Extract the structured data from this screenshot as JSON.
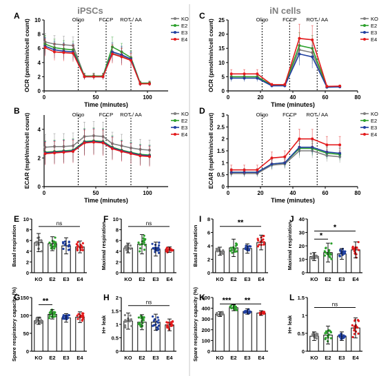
{
  "figure": {
    "left_header": "iPSCs",
    "right_header": "iN cells",
    "colors": {
      "KO": "#7f7f7f",
      "E2": "#2ca02c",
      "E3": "#1f3fa0",
      "E4": "#e31a1c",
      "divider": "#c8c8c8"
    }
  },
  "chart_data": [
    {
      "panel": "A",
      "type": "line",
      "xlabel": "Time (minutes)",
      "ylabel": "OCR (pmol/min/cell count)",
      "xlim": [
        0,
        120
      ],
      "ylim": [
        0,
        10
      ],
      "xticks": [
        0,
        50,
        100
      ],
      "yticks": [
        0,
        2,
        4,
        6,
        8,
        10
      ],
      "markers": [
        {
          "label": "Oligo",
          "x": 33
        },
        {
          "label": "FCCP",
          "x": 60
        },
        {
          "label": "ROT / AA",
          "x": 84
        }
      ],
      "x": [
        1,
        10,
        19,
        28,
        39,
        48,
        57,
        66,
        75,
        84,
        93,
        102
      ],
      "series": [
        {
          "name": "KO",
          "values": [
            6.9,
            6.6,
            6.5,
            6.4,
            2.1,
            2.1,
            2.1,
            5.3,
            4.9,
            4.4,
            1.0,
            1.0
          ],
          "err": [
            1.2,
            1.2,
            1.2,
            1.2,
            0.4,
            0.4,
            0.4,
            1.3,
            1.2,
            1.0,
            0.3,
            0.3
          ]
        },
        {
          "name": "E2",
          "values": [
            6.6,
            6.1,
            5.9,
            5.8,
            2.1,
            2.1,
            2.1,
            6.2,
            5.5,
            4.7,
            1.1,
            1.1
          ],
          "err": [
            1.2,
            1.2,
            1.2,
            1.2,
            0.4,
            0.4,
            0.4,
            1.4,
            1.2,
            1.0,
            0.3,
            0.3
          ]
        },
        {
          "name": "E3",
          "values": [
            6.3,
            5.8,
            5.6,
            5.5,
            2.0,
            2.0,
            2.0,
            5.5,
            5.1,
            4.5,
            1.0,
            1.0
          ],
          "err": [
            1.2,
            1.2,
            1.2,
            1.2,
            0.4,
            0.4,
            0.4,
            1.3,
            1.2,
            1.0,
            0.3,
            0.3
          ]
        },
        {
          "name": "E4",
          "values": [
            6.1,
            5.5,
            5.4,
            5.3,
            2.0,
            2.0,
            2.0,
            5.2,
            4.8,
            4.3,
            1.0,
            1.0
          ],
          "err": [
            1.2,
            1.2,
            1.2,
            1.2,
            0.4,
            0.4,
            0.4,
            1.3,
            1.2,
            1.0,
            0.3,
            0.3
          ]
        }
      ]
    },
    {
      "panel": "B",
      "type": "line",
      "xlabel": "Time (minutes)",
      "ylabel": "ECAR (mpH/min/cell count)",
      "xlim": [
        0,
        120
      ],
      "ylim": [
        0,
        5
      ],
      "xticks": [
        0,
        50,
        100
      ],
      "yticks": [
        0,
        2,
        4
      ],
      "markers": [
        {
          "label": "Oligo",
          "x": 33
        },
        {
          "label": "FCCP",
          "x": 60
        },
        {
          "label": "ROT / AA",
          "x": 84
        }
      ],
      "x": [
        1,
        10,
        19,
        28,
        39,
        48,
        57,
        66,
        75,
        84,
        93,
        102
      ],
      "series": [
        {
          "name": "KO",
          "values": [
            2.75,
            2.8,
            2.8,
            2.85,
            3.5,
            3.55,
            3.5,
            3.0,
            2.85,
            2.7,
            2.6,
            2.55
          ],
          "err": [
            0.9,
            0.9,
            0.9,
            0.9,
            1.0,
            1.0,
            1.0,
            0.8,
            0.8,
            0.8,
            0.7,
            0.7
          ]
        },
        {
          "name": "E2",
          "values": [
            2.4,
            2.45,
            2.5,
            2.55,
            3.15,
            3.2,
            3.15,
            2.75,
            2.55,
            2.4,
            2.25,
            2.2
          ],
          "err": [
            0.8,
            0.8,
            0.8,
            0.8,
            0.9,
            0.9,
            0.9,
            0.8,
            0.7,
            0.7,
            0.7,
            0.7
          ]
        },
        {
          "name": "E3",
          "values": [
            2.35,
            2.4,
            2.45,
            2.5,
            3.1,
            3.15,
            3.1,
            2.7,
            2.5,
            2.35,
            2.2,
            2.15
          ],
          "err": [
            0.8,
            0.8,
            0.8,
            0.8,
            0.9,
            0.9,
            0.9,
            0.8,
            0.7,
            0.7,
            0.7,
            0.7
          ]
        },
        {
          "name": "E4",
          "values": [
            2.3,
            2.35,
            2.4,
            2.45,
            3.05,
            3.1,
            3.05,
            2.65,
            2.45,
            2.3,
            2.15,
            2.1
          ],
          "err": [
            0.8,
            0.8,
            0.8,
            0.8,
            0.9,
            0.9,
            0.9,
            0.8,
            0.7,
            0.7,
            0.7,
            0.7
          ]
        }
      ]
    },
    {
      "panel": "C",
      "type": "line",
      "xlabel": "Time (minutes)",
      "ylabel": "OCR (pmol/min/cell count)",
      "xlim": [
        0,
        80
      ],
      "ylim": [
        0,
        25
      ],
      "xticks": [
        0,
        20,
        40,
        60,
        80
      ],
      "yticks": [
        0,
        5,
        10,
        15,
        20,
        25
      ],
      "markers": [
        {
          "label": "Oligo",
          "x": 21
        },
        {
          "label": "FCCP",
          "x": 38
        },
        {
          "label": "ROT / AA",
          "x": 55
        }
      ],
      "x": [
        2,
        10,
        18,
        27,
        35,
        44,
        52,
        61,
        69
      ],
      "series": [
        {
          "name": "KO",
          "values": [
            5.0,
            5.0,
            5.0,
            2.0,
            2.0,
            14.5,
            13.5,
            1.3,
            1.5
          ],
          "err": [
            1.2,
            1.2,
            1.2,
            0.5,
            0.5,
            4.0,
            4.0,
            0.4,
            0.4
          ]
        },
        {
          "name": "E2",
          "values": [
            5.0,
            5.0,
            5.0,
            2.0,
            2.0,
            16.0,
            15.0,
            1.5,
            1.6
          ],
          "err": [
            1.2,
            1.2,
            1.2,
            0.5,
            0.5,
            4.5,
            4.5,
            0.4,
            0.4
          ]
        },
        {
          "name": "E3",
          "values": [
            4.5,
            4.5,
            4.5,
            1.8,
            1.8,
            13.0,
            12.0,
            1.3,
            1.4
          ],
          "err": [
            1.2,
            1.2,
            1.2,
            0.5,
            0.5,
            4.0,
            4.0,
            0.4,
            0.4
          ]
        },
        {
          "name": "E4",
          "values": [
            6.0,
            6.0,
            6.0,
            2.2,
            2.2,
            18.5,
            18.0,
            1.6,
            1.7
          ],
          "err": [
            1.5,
            1.5,
            1.5,
            0.5,
            0.5,
            5.0,
            5.0,
            0.4,
            0.4
          ]
        }
      ]
    },
    {
      "panel": "D",
      "type": "line",
      "xlabel": "Time (minutes)",
      "ylabel": "ECAR (mpH/min/cell count)",
      "xlim": [
        0,
        80
      ],
      "ylim": [
        0,
        3
      ],
      "xticks": [
        0,
        20,
        40,
        60,
        80
      ],
      "yticks": [
        0.0,
        0.5,
        1.0,
        1.5,
        2.0,
        2.5,
        3.0
      ],
      "markers": [
        {
          "label": "Oligo",
          "x": 21
        },
        {
          "label": "FCCP",
          "x": 38
        },
        {
          "label": "ROT / AA",
          "x": 55
        }
      ],
      "x": [
        2,
        10,
        18,
        27,
        35,
        44,
        52,
        61,
        69
      ],
      "series": [
        {
          "name": "KO",
          "values": [
            0.55,
            0.55,
            0.55,
            0.9,
            0.95,
            1.5,
            1.5,
            1.3,
            1.25
          ],
          "err": [
            0.15,
            0.15,
            0.15,
            0.2,
            0.2,
            0.3,
            0.3,
            0.25,
            0.25
          ]
        },
        {
          "name": "E2",
          "values": [
            0.6,
            0.6,
            0.6,
            0.95,
            1.0,
            1.6,
            1.6,
            1.4,
            1.35
          ],
          "err": [
            0.15,
            0.15,
            0.15,
            0.2,
            0.2,
            0.3,
            0.3,
            0.25,
            0.25
          ]
        },
        {
          "name": "E3",
          "values": [
            0.6,
            0.6,
            0.6,
            0.95,
            1.0,
            1.65,
            1.65,
            1.45,
            1.4
          ],
          "err": [
            0.15,
            0.15,
            0.15,
            0.2,
            0.2,
            0.3,
            0.3,
            0.25,
            0.25
          ]
        },
        {
          "name": "E4",
          "values": [
            0.7,
            0.7,
            0.7,
            1.2,
            1.25,
            2.0,
            2.0,
            1.75,
            1.75
          ],
          "err": [
            0.2,
            0.2,
            0.2,
            0.25,
            0.25,
            0.4,
            0.4,
            0.35,
            0.35
          ]
        }
      ]
    },
    {
      "panel": "E",
      "type": "bar",
      "ylabel": "Basal respiration",
      "categories": [
        "KO",
        "E2",
        "E3",
        "E4"
      ],
      "values": [
        5.6,
        5.4,
        5.0,
        4.8
      ],
      "err": [
        1.7,
        1.3,
        1.5,
        1.1
      ],
      "ylim": [
        0,
        10
      ],
      "yticks": [
        0,
        2,
        4,
        6,
        8,
        10
      ],
      "sig": [
        {
          "from": 0,
          "to": 3,
          "label": "ns",
          "y": 8.6
        }
      ]
    },
    {
      "panel": "F",
      "type": "bar",
      "ylabel": "Maximal respiration",
      "categories": [
        "KO",
        "E2",
        "E3",
        "E4"
      ],
      "values": [
        4.6,
        5.3,
        4.4,
        4.3
      ],
      "err": [
        0.9,
        1.8,
        1.3,
        0.5
      ],
      "ylim": [
        0,
        10
      ],
      "yticks": [
        0,
        2,
        4,
        6,
        8,
        10
      ],
      "sig": [
        {
          "from": 0,
          "to": 3,
          "label": "ns",
          "y": 8.6
        }
      ]
    },
    {
      "panel": "G",
      "type": "bar",
      "ylabel": "Spare respiratory capacity (%)",
      "categories": [
        "KO",
        "E2",
        "E3",
        "E4"
      ],
      "values": [
        85,
        103,
        93,
        95
      ],
      "err": [
        10,
        13,
        12,
        15
      ],
      "ylim": [
        0,
        150
      ],
      "yticks": [
        0,
        50,
        100,
        150
      ],
      "sig": [
        {
          "from": 0,
          "to": 1,
          "label": "**",
          "y": 130
        }
      ]
    },
    {
      "panel": "H",
      "type": "bar",
      "ylabel": "H+ leak",
      "categories": [
        "KO",
        "E2",
        "E3",
        "E4"
      ],
      "values": [
        1.12,
        1.08,
        1.08,
        0.98
      ],
      "err": [
        0.3,
        0.28,
        0.3,
        0.22
      ],
      "ylim": [
        0,
        2
      ],
      "yticks": [
        0.0,
        0.5,
        1.0,
        1.5,
        2.0
      ],
      "sig": [
        {
          "from": 0,
          "to": 3,
          "label": "ns",
          "y": 1.7
        }
      ]
    },
    {
      "panel": "I",
      "type": "bar",
      "ylabel": "Basal respiration",
      "categories": [
        "KO",
        "E2",
        "E3",
        "E4"
      ],
      "values": [
        3.2,
        3.7,
        3.6,
        4.5
      ],
      "err": [
        0.6,
        1.3,
        0.7,
        1.1
      ],
      "ylim": [
        0,
        8
      ],
      "yticks": [
        0,
        2,
        4,
        6,
        8
      ],
      "sig": [
        {
          "from": 0,
          "to": 3,
          "label": "**",
          "y": 6.9
        }
      ]
    },
    {
      "panel": "J",
      "type": "bar",
      "ylabel": "Maximal respiration",
      "categories": [
        "KO",
        "E2",
        "E3",
        "E4"
      ],
      "values": [
        12,
        15,
        14,
        17
      ],
      "err": [
        3,
        7,
        4,
        6
      ],
      "ylim": [
        0,
        40
      ],
      "yticks": [
        0,
        10,
        20,
        30,
        40
      ],
      "sig": [
        {
          "from": 0,
          "to": 1,
          "label": "*",
          "y": 25
        },
        {
          "from": 0,
          "to": 3,
          "label": "*",
          "y": 31
        }
      ]
    },
    {
      "panel": "K",
      "type": "bar",
      "ylabel": "Spare respiratory capacity (%)",
      "categories": [
        "KO",
        "E2",
        "E3",
        "E4"
      ],
      "values": [
        345,
        405,
        370,
        355
      ],
      "err": [
        22,
        28,
        25,
        22
      ],
      "ylim": [
        0,
        500
      ],
      "yticks": [
        0,
        100,
        200,
        300,
        400,
        500
      ],
      "sig": [
        {
          "from": 0,
          "to": 1,
          "label": "***",
          "y": 440
        },
        {
          "from": 1,
          "to": 3,
          "label": "**",
          "y": 440
        }
      ]
    },
    {
      "panel": "L",
      "type": "bar",
      "ylabel": "H+ leak",
      "categories": [
        "KO",
        "E2",
        "E3",
        "E4"
      ],
      "values": [
        0.42,
        0.45,
        0.42,
        0.65
      ],
      "err": [
        0.12,
        0.25,
        0.12,
        0.28
      ],
      "ylim": [
        0,
        1.5
      ],
      "yticks": [
        0.0,
        0.5,
        1.0,
        1.5
      ],
      "sig": [
        {
          "from": 0,
          "to": 3,
          "label": "ns",
          "y": 1.22
        }
      ]
    }
  ]
}
